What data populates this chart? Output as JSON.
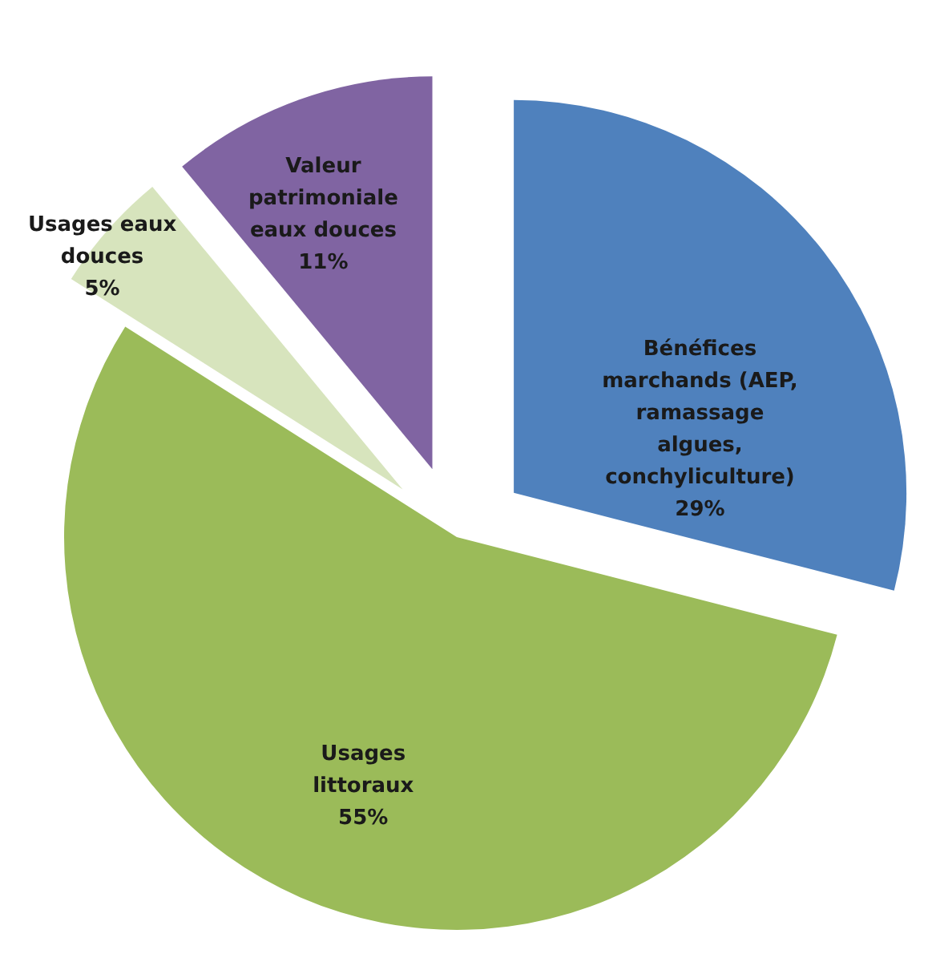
{
  "chart_data": {
    "type": "pie",
    "categories": [
      "Bénéfices marchands (AEP, ramassage algues, conchyliculture)",
      "Usages littoraux",
      "Usages eaux douces",
      "Valeur patrimoniale eaux douces"
    ],
    "values": [
      29,
      55,
      5,
      11
    ],
    "value_labels": [
      "29%",
      "55%",
      "5%",
      "11%"
    ],
    "colors": [
      "#4f81bd",
      "#9bbb59",
      "#d7e4bd",
      "#8064a2"
    ],
    "legend": false
  }
}
